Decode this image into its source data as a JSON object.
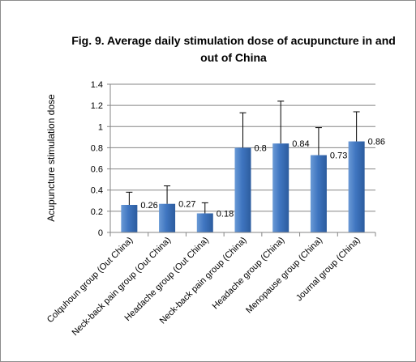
{
  "chart_data": {
    "type": "bar",
    "title": "Fig. 9.  Average daily stimulation dose of acupuncture in and out of China",
    "ylabel": "Acupuncture stimulation dose",
    "xlabel": "",
    "ylim": [
      0,
      1.4
    ],
    "yticks": [
      "0",
      "0.2",
      "0.4",
      "0.6",
      "0.8",
      "1",
      "1.2",
      "1.4"
    ],
    "grid": true,
    "legend": "none",
    "categories": [
      "Colquhoun  group (Out China)",
      "Neck-back pain group (Out China)",
      "Headache group (Out China)",
      "Neck-back pain group (China)",
      "Headache group (China)",
      "Menopause group (China)",
      "Journal group (China)"
    ],
    "values": [
      0.26,
      0.27,
      0.18,
      0.8,
      0.84,
      0.73,
      0.86
    ],
    "value_labels": [
      "0.26",
      "0.27",
      "0.18",
      "0.8",
      "0.84",
      "0.73",
      "0.86"
    ],
    "error_upper": [
      0.38,
      0.44,
      0.28,
      1.13,
      1.24,
      0.99,
      1.14
    ],
    "colors": {
      "bar_light": "#6a9ad6",
      "bar_mid": "#3f75c0",
      "bar_dark": "#2c5c9e",
      "grid": "#858585",
      "axis": "#858585"
    }
  }
}
